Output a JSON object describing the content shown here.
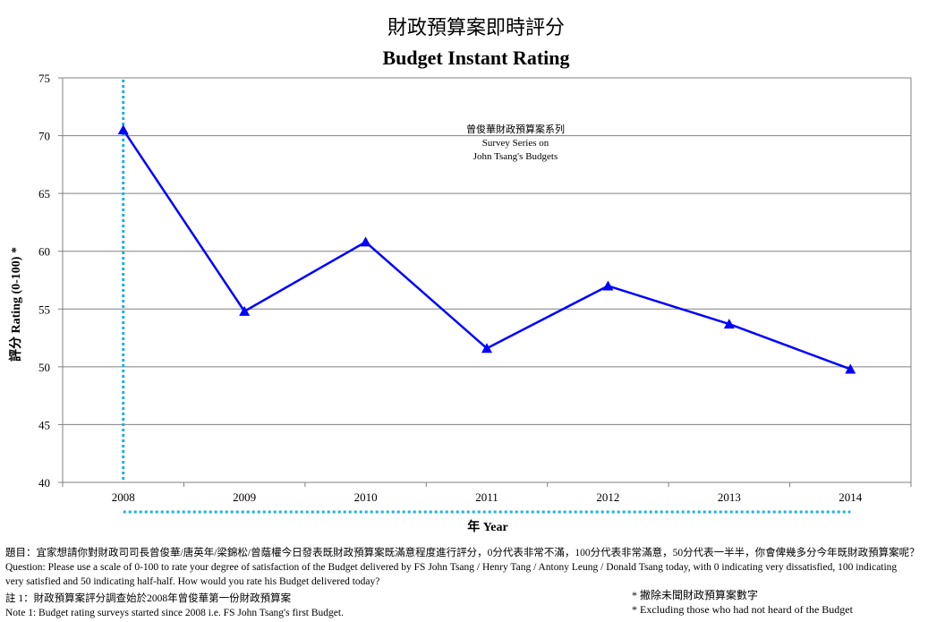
{
  "chart_data": {
    "type": "line",
    "title": "財政預算案即時評分",
    "subtitle": "Budget Instant Rating",
    "xlabel": "年 Year",
    "ylabel": "評分 Rating (0-100) *",
    "categories": [
      "2008",
      "2009",
      "2010",
      "2011",
      "2012",
      "2013",
      "2014"
    ],
    "series": [
      {
        "values": [
          70.5,
          54.8,
          60.8,
          51.6,
          57.0,
          53.7,
          49.8
        ],
        "color": "#0000ff",
        "marker": "triangle"
      }
    ],
    "ylim": [
      40,
      75
    ],
    "yticks": [
      40,
      45,
      50,
      55,
      60,
      65,
      70,
      75
    ],
    "grid": true,
    "annotation": [
      "曾俊華財政預算案系列",
      "Survey Series on",
      "John Tsang's Budgets"
    ],
    "series_marker_color": "#1ab0e8"
  },
  "notes": {
    "question_zh": "題目：宜家想請你對財政司司長曾俊華/唐英年/梁錦松/曾蔭權今日發表既財政預算案既滿意程度進行評分，0分代表非常不滿，100分代表非常滿意，50分代表一半半，你會俾幾多分今年既財政預算案呢？",
    "question_en_1": "Question: Please use a scale of 0-100 to rate your degree of satisfaction of the Budget delivered by FS John Tsang / Henry Tang / Antony Leung / Donald Tsang today, with 0 indicating very dissatisfied, 100 indicating",
    "question_en_2": "very satisfied and 50 indicating half-half. How would you rate his Budget delivered today?",
    "note1_zh": "註 1：財政預算案評分調查始於2008年曾俊華第一份財政預算案",
    "note1_en": "Note 1: Budget rating surveys started since 2008 i.e. FS John Tsang's first Budget.",
    "excl_zh": "* 撇除未聞財政預算案數字",
    "excl_en": "* Excluding  those who had not heard of the Budget"
  }
}
